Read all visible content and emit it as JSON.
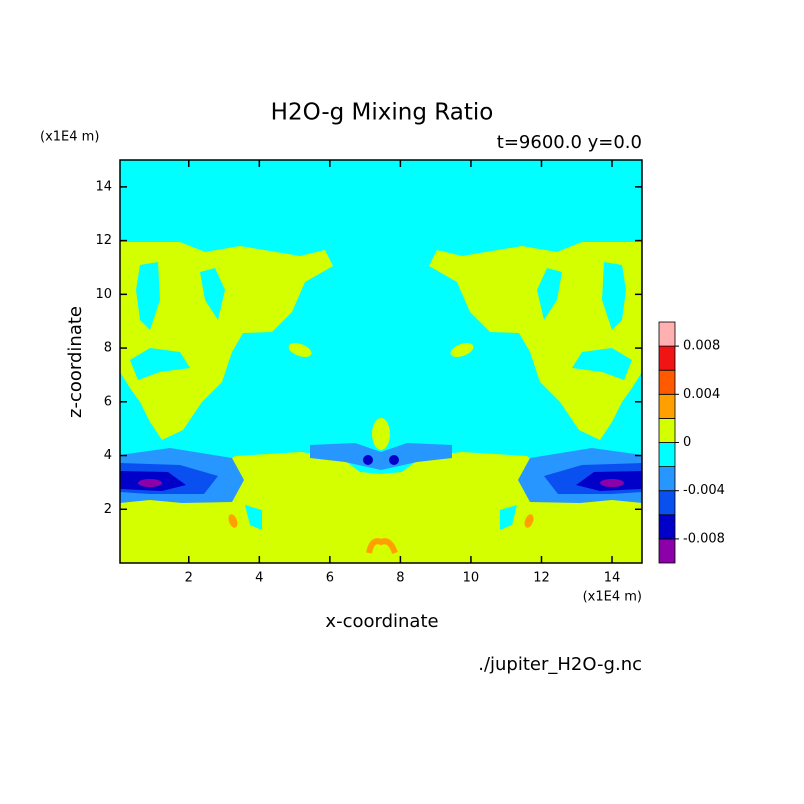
{
  "chart_data": {
    "type": "contour",
    "title": "H2O-g Mixing Ratio",
    "subtitle": "t=9600.0 y=0.0",
    "x_label": "x-coordinate",
    "y_label": "z-coordinate",
    "x_unit": "(x1E4 m)",
    "y_unit": "(x1E4 m)",
    "source": "./jupiter_H2O-g.nc",
    "xlim": [
      0.05,
      14.85
    ],
    "ylim": [
      0,
      15
    ],
    "xticks": [
      2,
      4,
      6,
      8,
      10,
      12,
      14
    ],
    "yticks": [
      2,
      4,
      6,
      8,
      10,
      12,
      14
    ],
    "colorbar": {
      "levels": [
        -0.008,
        -0.006,
        -0.004,
        -0.002,
        0,
        0.002,
        0.004,
        0.006,
        0.008
      ],
      "colors": [
        "#8c00aa",
        "#0000c8",
        "#0a50f0",
        "#2896ff",
        "#00ffff",
        "#d4ff00",
        "#ffa000",
        "#ff5a00",
        "#f01414",
        "#ffb0b0"
      ],
      "ticks": [
        -0.008,
        -0.004,
        0,
        0.004,
        0.008
      ]
    }
  }
}
